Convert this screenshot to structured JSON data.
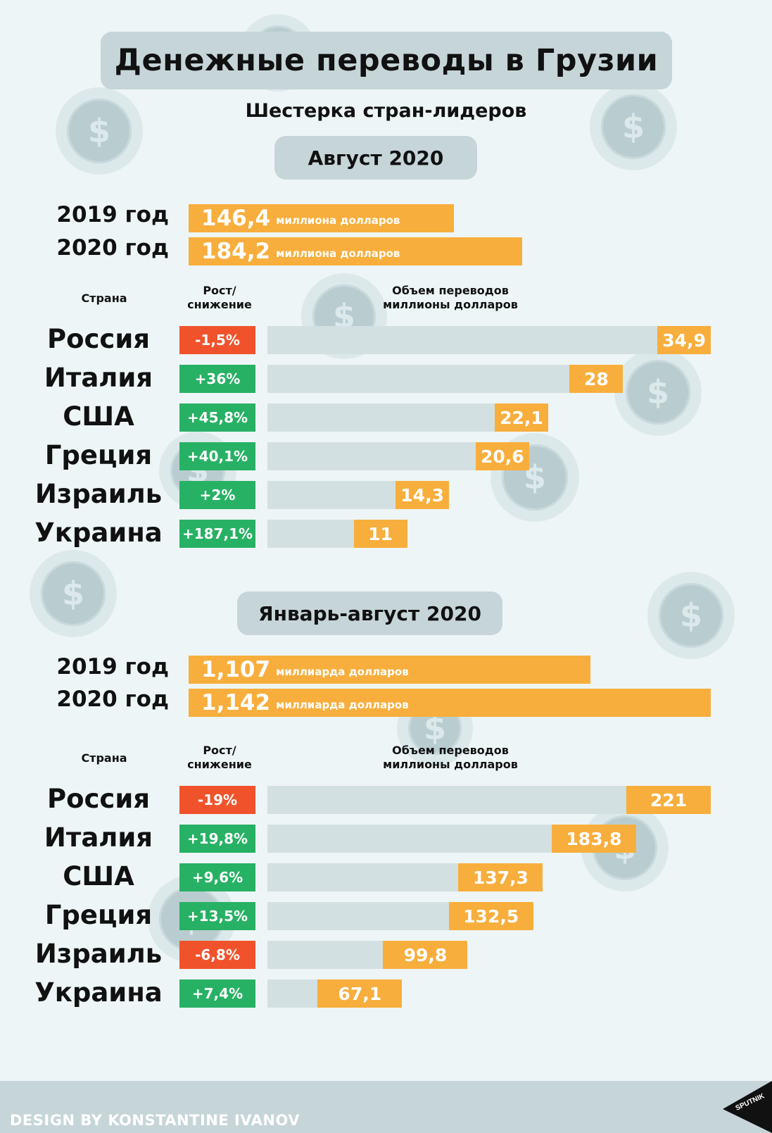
{
  "title": "Денежные переводы в Грузии",
  "subtitle": "Шестерка стран-лидеров",
  "colors": {
    "orange": "#f8ae3c",
    "increase": "#27b164",
    "decrease": "#f0532c",
    "track": "#d3e0e2",
    "pill": "#c6d6d8",
    "background": "#eef5f6"
  },
  "headers": {
    "country": "Страна",
    "change_line1": "Рост/",
    "change_line2": "снижение",
    "volume_line1": "Объем переводов",
    "volume_line2": "миллионы долларов"
  },
  "footer": {
    "credit": "DESIGN BY KONSTANTINE IVANOV",
    "logo": "SPUTNIK"
  },
  "chart_data": [
    {
      "type": "bar",
      "period": "Август 2020",
      "totals": [
        {
          "label": "2019 год",
          "value": "146,4",
          "unit": "миллиона долларов",
          "amount": 146.4
        },
        {
          "label": "2020 год",
          "value": "184,2",
          "unit": "миллиона долларов",
          "amount": 184.2
        }
      ],
      "rows": [
        {
          "country": "Россия",
          "change": "-1,5%",
          "trend": "down",
          "value": "34,9",
          "amount": 34.9
        },
        {
          "country": "Италия",
          "change": "+36%",
          "trend": "up",
          "value": "28",
          "amount": 28
        },
        {
          "country": "США",
          "change": "+45,8%",
          "trend": "up",
          "value": "22,1",
          "amount": 22.1
        },
        {
          "country": "Греция",
          "change": "+40,1%",
          "trend": "up",
          "value": "20,6",
          "amount": 20.6
        },
        {
          "country": "Израиль",
          "change": "+2%",
          "trend": "up",
          "value": "14,3",
          "amount": 14.3
        },
        {
          "country": "Украина",
          "change": "+187,1%",
          "trend": "up",
          "value": "11",
          "amount": 11
        }
      ]
    },
    {
      "type": "bar",
      "period": "Январь-август 2020",
      "totals": [
        {
          "label": "2019 год",
          "value": "1,107",
          "unit": "миллиарда долларов",
          "amount": 1.107
        },
        {
          "label": "2020 год",
          "value": "1,142",
          "unit": "миллиарда долларов",
          "amount": 1.142
        }
      ],
      "rows": [
        {
          "country": "Россия",
          "change": "-19%",
          "trend": "down",
          "value": "221",
          "amount": 221
        },
        {
          "country": "Италия",
          "change": "+19,8%",
          "trend": "up",
          "value": "183,8",
          "amount": 183.8
        },
        {
          "country": "США",
          "change": "+9,6%",
          "trend": "up",
          "value": "137,3",
          "amount": 137.3
        },
        {
          "country": "Греция",
          "change": "+13,5%",
          "trend": "up",
          "value": "132,5",
          "amount": 132.5
        },
        {
          "country": "Израиль",
          "change": "-6,8%",
          "trend": "down",
          "value": "99,8",
          "amount": 99.8
        },
        {
          "country": "Украина",
          "change": "+7,4%",
          "trend": "up",
          "value": "67,1",
          "amount": 67.1
        }
      ]
    }
  ]
}
